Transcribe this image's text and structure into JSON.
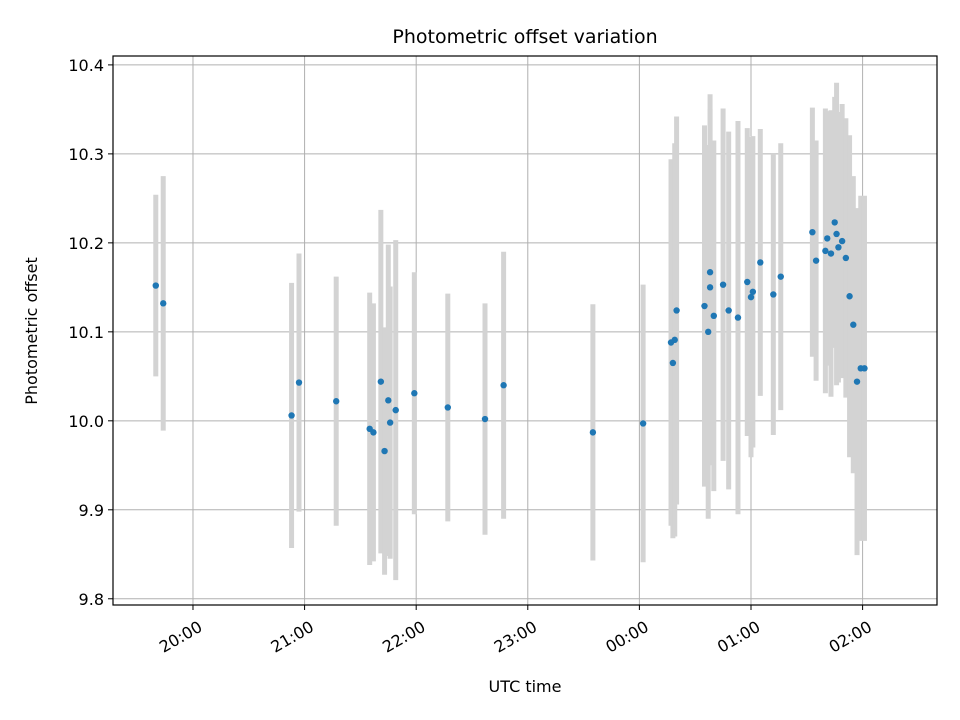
{
  "chart_data": {
    "type": "scatter",
    "title": "Photometric offset variation",
    "xlabel": "UTC time",
    "ylabel": "Photometric offset",
    "x_unit": "UTC time (HH:MM), times after 23:59 fall on the following day",
    "ylim": [
      9.793,
      10.41
    ],
    "xlim": [
      "19:17",
      "02:40"
    ],
    "x_ticks": [
      "20:00",
      "21:00",
      "22:00",
      "23:00",
      "00:00",
      "01:00",
      "02:00"
    ],
    "y_ticks": [
      "9.8",
      "9.9",
      "10.0",
      "10.1",
      "10.2",
      "10.3",
      "10.4"
    ],
    "grid": true,
    "legend": "none",
    "colors": {
      "marker": "#1f77b4",
      "errorbar": "#d3d3d3",
      "grid": "#b0b0b0"
    },
    "series": [
      {
        "x": [
          "19:40",
          "19:44",
          "20:53",
          "20:57",
          "21:17",
          "21:35",
          "21:37",
          "21:41",
          "21:43",
          "21:45",
          "21:46",
          "21:49",
          "21:59",
          "22:17",
          "22:37",
          "22:47",
          "23:35",
          "00:02",
          "00:17",
          "00:18",
          "00:19",
          "00:20",
          "00:35",
          "00:37",
          "00:38",
          "00:38",
          "00:40",
          "00:45",
          "00:48",
          "00:53",
          "00:58",
          "01:00",
          "01:01",
          "01:05",
          "01:12",
          "01:16",
          "01:33",
          "01:35",
          "01:40",
          "01:41",
          "01:43",
          "01:45",
          "01:46",
          "01:47",
          "01:49",
          "01:51",
          "01:53",
          "01:55",
          "01:57",
          "01:59"
        ],
        "y": [
          10.152,
          10.132,
          10.006,
          10.043,
          10.022,
          9.991,
          9.987,
          10.044,
          9.966,
          10.023,
          9.998,
          10.012,
          10.031,
          10.015,
          10.002,
          10.04,
          9.987,
          9.997,
          10.088,
          10.065,
          10.091,
          10.124,
          10.129,
          10.1,
          10.167,
          10.15,
          10.118,
          10.153,
          10.124,
          10.116,
          10.156,
          10.139,
          10.145,
          10.178,
          10.142,
          10.162,
          10.212,
          10.18,
          10.191,
          10.205,
          10.188,
          10.223,
          10.21,
          10.195,
          10.202,
          10.183,
          10.14,
          10.108,
          10.044,
          10.059
        ],
        "err": [
          0.102,
          0.143,
          0.149,
          0.145,
          0.14,
          0.153,
          0.145,
          0.193,
          0.139,
          0.175,
          0.153,
          0.191,
          0.136,
          0.128,
          0.13,
          0.15,
          0.144,
          0.156,
          0.206,
          0.197,
          0.221,
          0.218,
          0.203,
          0.21,
          0.2,
          0.2,
          0.197,
          0.198,
          0.201,
          0.221,
          0.173,
          0.18,
          0.175,
          0.15,
          0.158,
          0.15,
          0.14,
          0.135,
          0.16,
          0.143,
          0.161,
          0.141,
          0.17,
          0.152,
          0.154,
          0.157,
          0.181,
          0.167,
          0.195,
          0.194
        ]
      }
    ],
    "extra_points": [
      {
        "x": "02:01",
        "y": 10.059,
        "err": 0.194
      }
    ]
  }
}
